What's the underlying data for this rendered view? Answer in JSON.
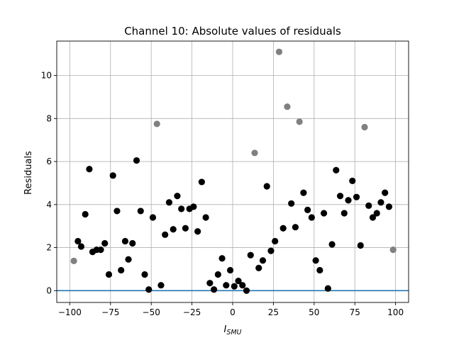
{
  "chart_data": {
    "type": "scatter",
    "title": "Channel 10: Absolute values of residuals",
    "xlabel_main": "I",
    "xlabel_sub": "SMU",
    "ylabel": "Residuals",
    "xlim": [
      -108,
      108
    ],
    "ylim": [
      -0.55,
      11.6
    ],
    "xticks": [
      -100,
      -75,
      -50,
      -25,
      0,
      25,
      50,
      75,
      100
    ],
    "yticks": [
      0,
      2,
      4,
      6,
      8,
      10
    ],
    "grid": true,
    "hline": {
      "y": 0,
      "color": "#1f77b4"
    },
    "colors": {
      "inlier": "#000000",
      "outlier": "#808080"
    },
    "series": [
      {
        "role": "inlier",
        "points": [
          [
            -95,
            2.3
          ],
          [
            -93,
            2.05
          ],
          [
            -90.5,
            3.55
          ],
          [
            -88,
            5.65
          ],
          [
            -86,
            1.8
          ],
          [
            -83.5,
            1.9
          ],
          [
            -81,
            1.9
          ],
          [
            -78.5,
            2.2
          ],
          [
            -76,
            0.75
          ],
          [
            -73.5,
            5.35
          ],
          [
            -71,
            3.7
          ],
          [
            -68.5,
            0.95
          ],
          [
            -66,
            2.3
          ],
          [
            -64,
            1.45
          ],
          [
            -61.5,
            2.2
          ],
          [
            -59,
            6.05
          ],
          [
            -56.5,
            3.7
          ],
          [
            -54,
            0.75
          ],
          [
            -51.5,
            0.05
          ],
          [
            -49,
            3.4
          ],
          [
            -44,
            0.25
          ],
          [
            -41.5,
            2.6
          ],
          [
            -39,
            4.1
          ],
          [
            -36.5,
            2.85
          ],
          [
            -34,
            4.4
          ],
          [
            -31.5,
            3.8
          ],
          [
            -29,
            2.9
          ],
          [
            -26.5,
            3.8
          ],
          [
            -24,
            3.9
          ],
          [
            -21.5,
            2.75
          ],
          [
            -19,
            5.05
          ],
          [
            -16.5,
            3.4
          ],
          [
            -14,
            0.35
          ],
          [
            -11.5,
            0.05
          ],
          [
            -9,
            0.75
          ],
          [
            -6.5,
            1.5
          ],
          [
            -4,
            0.25
          ],
          [
            -1.5,
            0.95
          ],
          [
            1,
            0.2
          ],
          [
            3.5,
            0.45
          ],
          [
            6,
            0.25
          ],
          [
            8.5,
            0.0
          ],
          [
            11,
            1.65
          ],
          [
            16,
            1.05
          ],
          [
            18.5,
            1.4
          ],
          [
            21,
            4.85
          ],
          [
            23.5,
            1.85
          ],
          [
            26,
            2.3
          ],
          [
            31,
            2.9
          ],
          [
            36,
            4.05
          ],
          [
            38.5,
            2.95
          ],
          [
            43.5,
            4.55
          ],
          [
            46,
            3.75
          ],
          [
            48.5,
            3.4
          ],
          [
            51,
            1.4
          ],
          [
            53.5,
            0.95
          ],
          [
            56,
            3.6
          ],
          [
            58.5,
            0.1
          ],
          [
            61,
            2.15
          ],
          [
            63.5,
            5.6
          ],
          [
            66,
            4.4
          ],
          [
            68.5,
            3.6
          ],
          [
            71,
            4.2
          ],
          [
            73.5,
            5.1
          ],
          [
            76,
            4.35
          ],
          [
            78.5,
            2.1
          ],
          [
            83.5,
            3.95
          ],
          [
            86,
            3.4
          ],
          [
            88.5,
            3.6
          ],
          [
            91,
            4.1
          ],
          [
            93.5,
            4.55
          ],
          [
            96,
            3.9
          ]
        ]
      },
      {
        "role": "outlier",
        "points": [
          [
            -97.5,
            1.38
          ],
          [
            -46.5,
            7.75
          ],
          [
            13.5,
            6.4
          ],
          [
            28.5,
            11.1
          ],
          [
            33.5,
            8.55
          ],
          [
            41,
            7.85
          ],
          [
            81,
            7.6
          ],
          [
            98.5,
            1.9
          ]
        ]
      }
    ]
  }
}
